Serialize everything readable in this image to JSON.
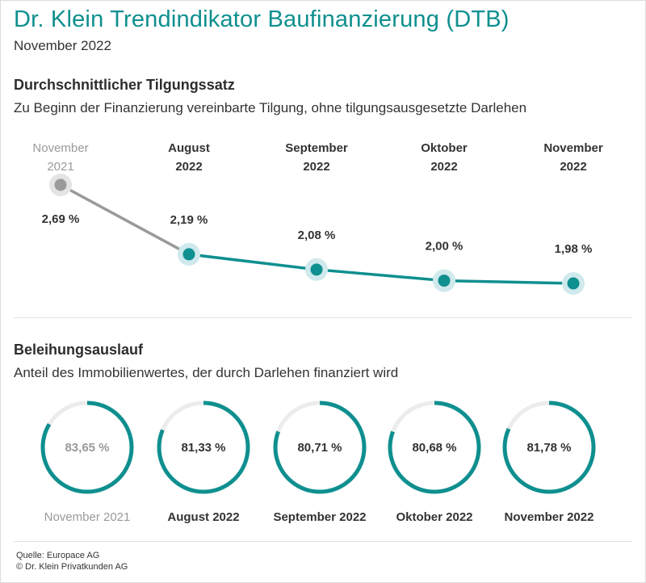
{
  "header": {
    "title": "Dr. Klein Trendindikator Baufinanzierung (DTB)",
    "subtitle": "November 2022"
  },
  "section1": {
    "title": "Durchschnittlicher Tilgungssatz",
    "subtitle": "Zu Beginn der Finanzierung vereinbarte Tilgung, ohne tilgungsausgesetzte Darlehen"
  },
  "section2": {
    "title": "Beleihungsauslauf",
    "subtitle": "Anteil des Immobilienwertes, der durch Darlehen finanziert wird"
  },
  "footer": {
    "source": "Quelle: Europace AG",
    "copyright": "© Dr. Klein Privatkunden AG"
  },
  "colors": {
    "accent": "#0f8f8f",
    "accent_light": "#cfe9ec",
    "past": "#9a9a9a",
    "past_light": "#e4e4e4",
    "ring_track": "#ececec"
  },
  "chart_data": [
    {
      "type": "line",
      "title": "Durchschnittlicher Tilgungssatz",
      "categories": [
        [
          "November",
          "2021"
        ],
        [
          "August",
          "2022"
        ],
        [
          "September",
          "2022"
        ],
        [
          "Oktober",
          "2022"
        ],
        [
          "November",
          "2022"
        ]
      ],
      "values": [
        2.69,
        2.19,
        2.08,
        2.0,
        1.98
      ],
      "value_labels": [
        "2,69 %",
        "2,19 %",
        "2,08 %",
        "2,00 %",
        "1,98 %"
      ],
      "unit": "%",
      "highlight_first_as_past": true
    },
    {
      "type": "pie",
      "title": "Beleihungsauslauf",
      "categories": [
        "November 2021",
        "August 2022",
        "September 2022",
        "Oktober 2022",
        "November 2022"
      ],
      "values": [
        83.65,
        81.33,
        80.71,
        80.68,
        81.78
      ],
      "value_labels": [
        "83,65 %",
        "81,33 %",
        "80,71 %",
        "80,68 %",
        "81,78 %"
      ],
      "unit": "%",
      "style": "donut-ring",
      "highlight_first_as_past": true
    }
  ]
}
